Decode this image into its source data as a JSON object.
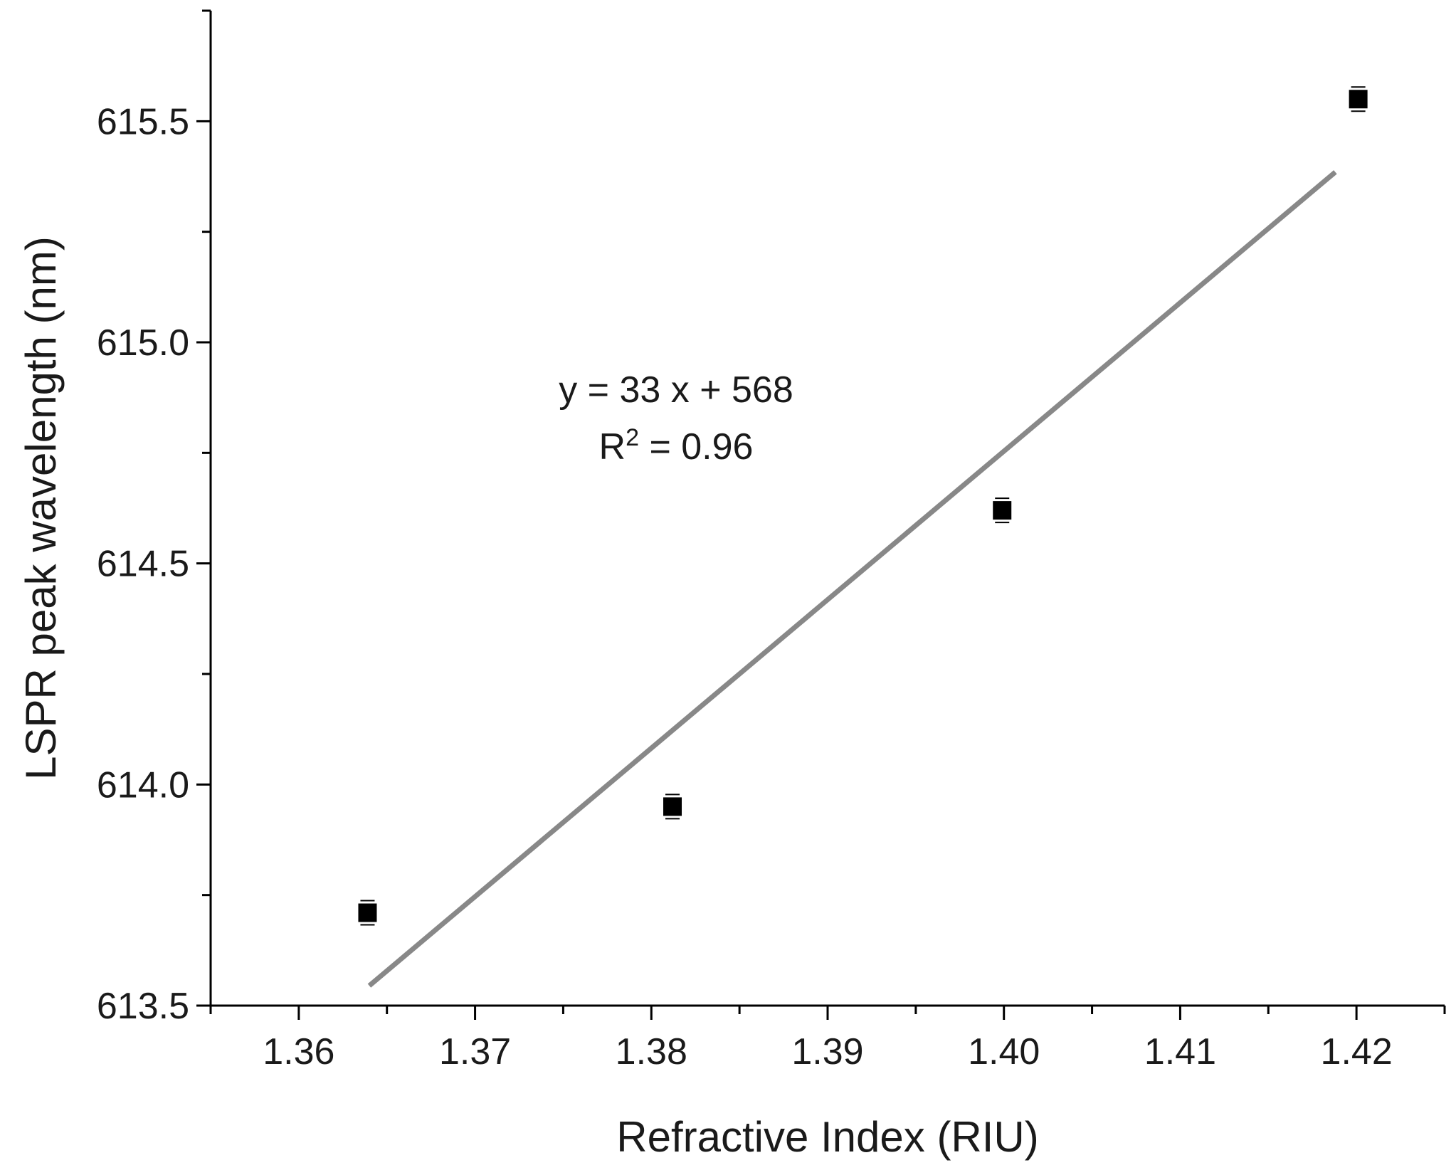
{
  "chart_data": {
    "type": "scatter",
    "xlabel": "Refractive Index (RIU)",
    "ylabel": "LSPR peak wavelength (nm)",
    "xlim": [
      1.355,
      1.425
    ],
    "ylim": [
      613.5,
      615.75
    ],
    "x_ticks": [
      "1.36",
      "1.37",
      "1.38",
      "1.39",
      "1.40",
      "1.41",
      "1.42"
    ],
    "x_tick_values": [
      1.36,
      1.37,
      1.38,
      1.39,
      1.4,
      1.41,
      1.42
    ],
    "y_ticks": [
      "613.5",
      "614.0",
      "614.5",
      "615.0",
      "615.5"
    ],
    "y_tick_values": [
      613.5,
      614.0,
      614.5,
      615.0,
      615.5
    ],
    "grid": false,
    "series": [
      {
        "marker": "square",
        "color": "#000000",
        "x": [
          1.3639,
          1.3812,
          1.3999,
          1.4201
        ],
        "y": [
          613.71,
          613.95,
          614.62,
          615.55
        ]
      }
    ],
    "fit": {
      "color": "#888888",
      "x": [
        1.364,
        1.4188
      ],
      "y": [
        613.545,
        615.385
      ],
      "equation": "y = 33 x + 568",
      "r2_prefix": "R",
      "r2_sup": "2",
      "r2_suffix": " = 0.96"
    }
  }
}
